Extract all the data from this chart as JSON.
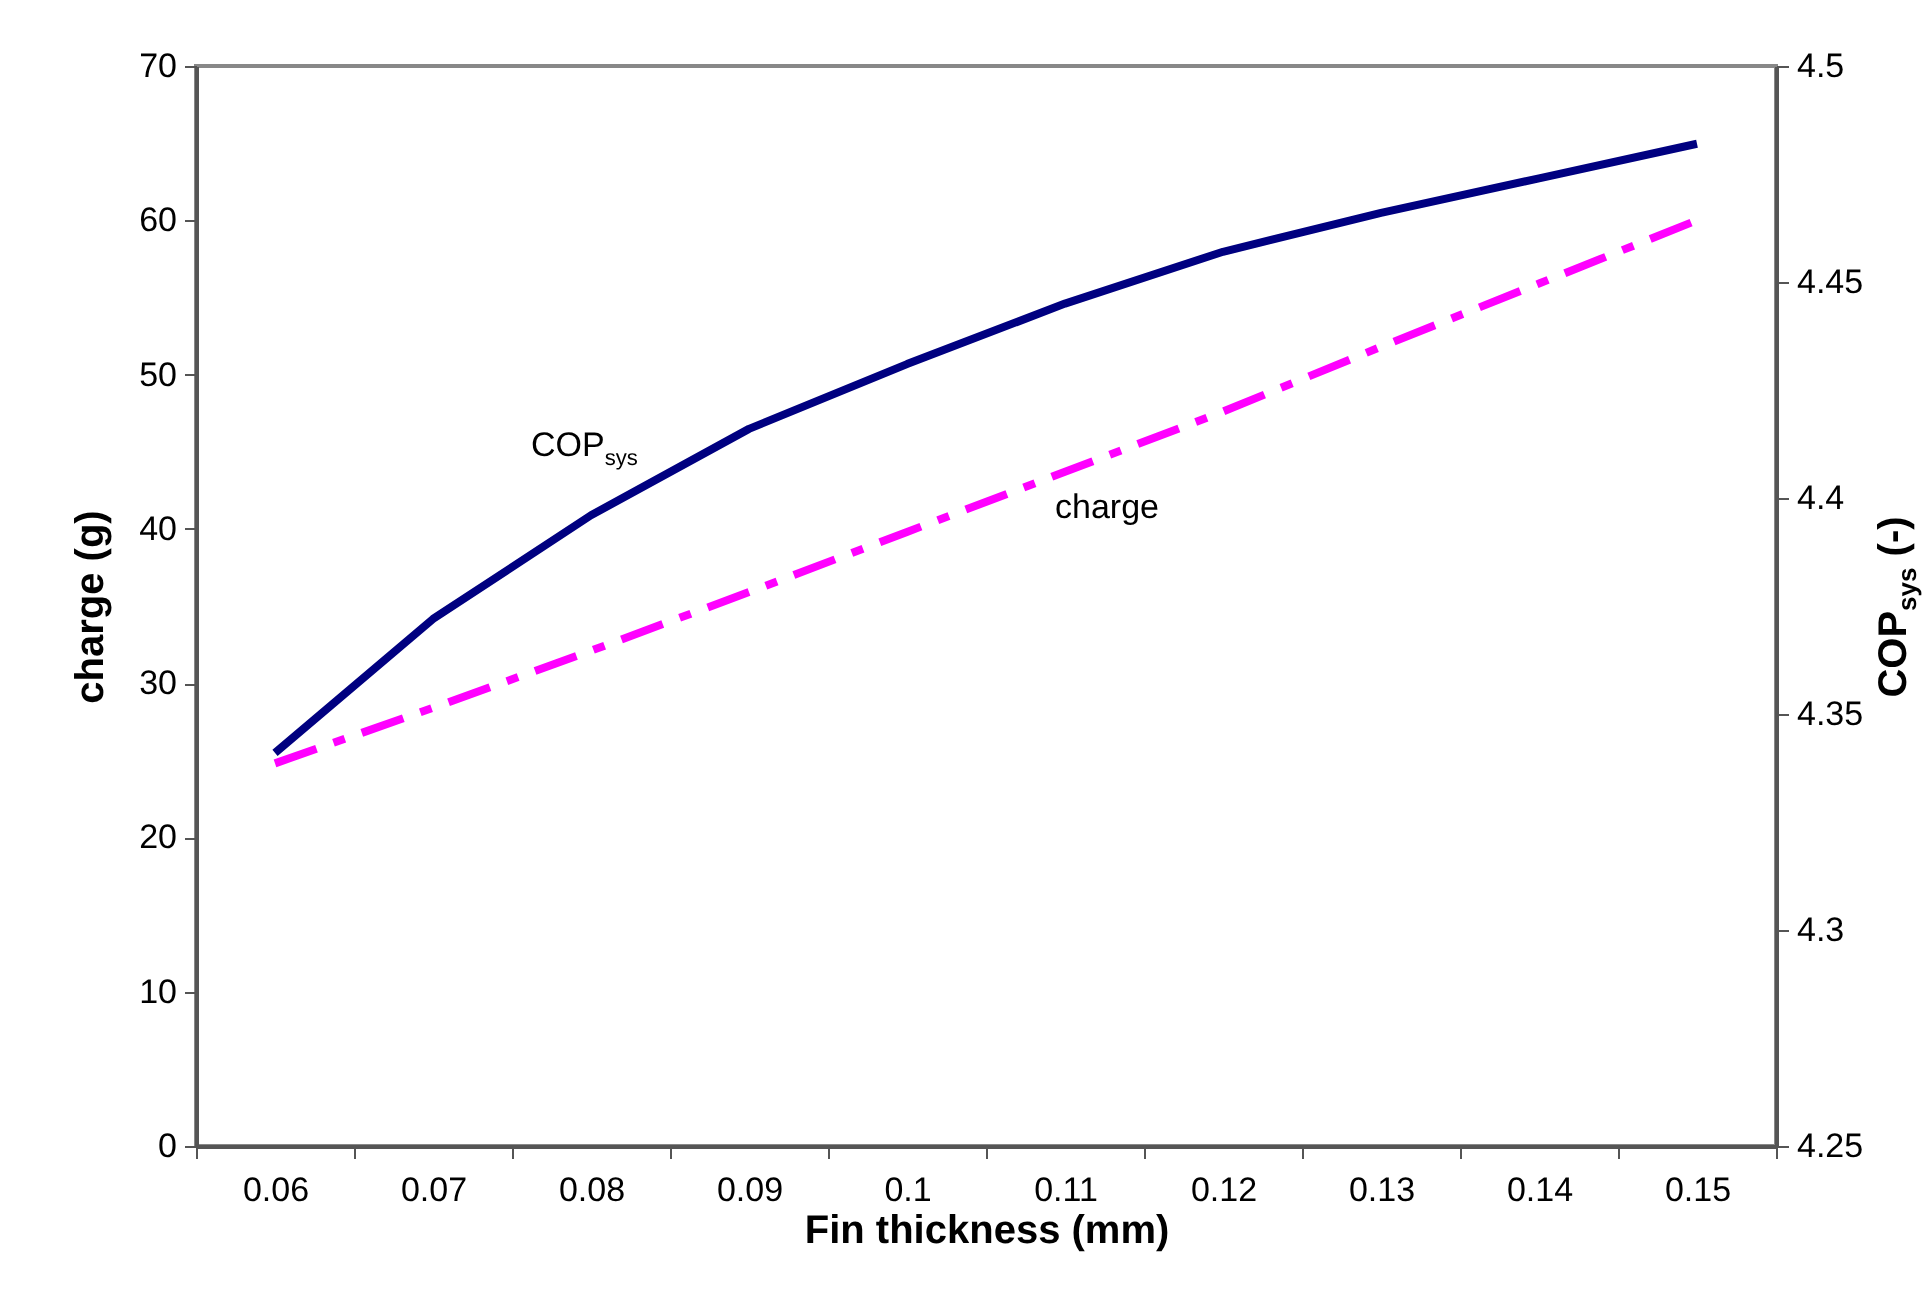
{
  "chart_data": {
    "type": "line",
    "xlabel": "Fin thickness (mm)",
    "ylabel": "charge (g)",
    "y2label": "COP$_{sys}$ (-)",
    "categories": [
      "0.06",
      "0.07",
      "0.08",
      "0.09",
      "0.1",
      "0.11",
      "0.12",
      "0.13",
      "0.14",
      "0.15"
    ],
    "ylim": [
      0,
      70
    ],
    "yticks": [
      0,
      10,
      20,
      30,
      40,
      50,
      60,
      70
    ],
    "y2lim": [
      4.25,
      4.5
    ],
    "y2ticks": [
      4.25,
      4.3,
      4.35,
      4.4,
      4.45,
      4.5
    ],
    "grid": false,
    "legend": false,
    "marker": "none",
    "series": [
      {
        "name": "COP$_{sys}$",
        "color": "#000080",
        "axis": "y2",
        "line_style": "solid",
        "values": [
          4.341,
          4.372,
          4.396,
          4.416,
          4.431,
          4.445,
          4.457,
          4.466,
          4.474,
          4.482
        ]
      },
      {
        "name": "charge",
        "color": "#ff00ff",
        "axis": "y",
        "line_style": "dashed",
        "values": [
          24.8,
          28.4,
          32.1,
          35.9,
          39.8,
          43.7,
          47.6,
          51.8,
          55.9,
          60.0
        ]
      }
    ]
  }
}
